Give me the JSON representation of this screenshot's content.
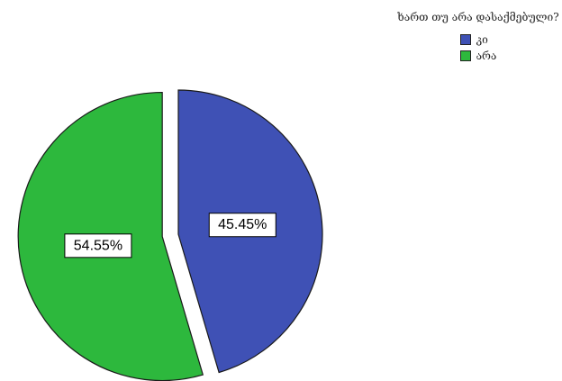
{
  "chart_data": {
    "type": "pie",
    "categories": [
      "კი",
      "არა"
    ],
    "values": [
      45.45,
      54.55
    ],
    "data_labels": [
      "45.45%",
      "54.55%"
    ],
    "colors": [
      "#3F51B5",
      "#2DB83D"
    ],
    "exploded": [
      false,
      true
    ],
    "legend_title": "ხართ თუ არა დასაქმებული?",
    "legend_placement": "top-right"
  }
}
